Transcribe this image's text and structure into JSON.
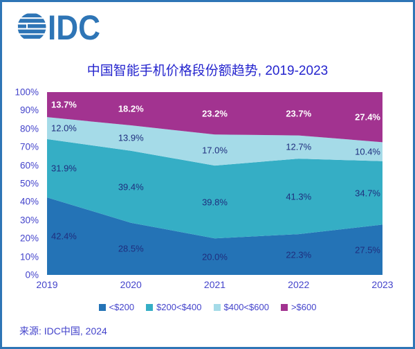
{
  "brand": {
    "logo_text": "IDC"
  },
  "title": "中国智能手机价格段份额趋势, 2019-2023",
  "source": "来源: IDC中国, 2024",
  "colors": {
    "brand_blue": "#2E75B6",
    "title_blue": "#2424CE",
    "axis_text": "#4343CB",
    "data_label_navy": "#1F2E7E",
    "data_label_white": "#FFFFFF"
  },
  "chart_data": {
    "type": "area",
    "stacked": true,
    "title": "中国智能手机价格段份额趋势, 2019-2023",
    "x": [
      "2019",
      "2020",
      "2021",
      "2022",
      "2023"
    ],
    "series": [
      {
        "name": "<$200",
        "color": "#2473B6",
        "values": [
          42.4,
          28.5,
          20.0,
          22.3,
          27.5
        ],
        "label_color": "#1F2E7E",
        "label_bold": false
      },
      {
        "name": "$200<$400",
        "color": "#35AEC5",
        "values": [
          31.9,
          39.4,
          39.8,
          41.3,
          34.7
        ],
        "label_color": "#1F2E7E",
        "label_bold": false
      },
      {
        "name": "$400<$600",
        "color": "#A5DBE8",
        "values": [
          12.0,
          13.9,
          17.0,
          12.7,
          10.4
        ],
        "label_color": "#1F2E7E",
        "label_bold": false
      },
      {
        "name": ">$600",
        "color": "#A23390",
        "values": [
          13.7,
          18.2,
          23.2,
          23.7,
          27.4
        ],
        "label_color": "#FFFFFF",
        "label_bold": true
      }
    ],
    "ylim": [
      0,
      100
    ],
    "yticks": [
      "0%",
      "10%",
      "20%",
      "30%",
      "40%",
      "50%",
      "60%",
      "70%",
      "80%",
      "90%",
      "100%"
    ],
    "grid": false,
    "legend_position": "bottom",
    "data_labels": "percent_one_decimal"
  }
}
